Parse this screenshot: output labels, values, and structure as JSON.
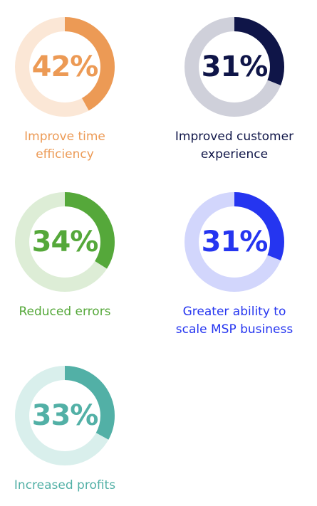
{
  "chart_data": {
    "type": "donut",
    "items": [
      {
        "value": 42,
        "label": "42%",
        "caption": [
          "Improve time",
          "efficiency"
        ],
        "color": "#EC9A55",
        "track": "#FBE7D6"
      },
      {
        "value": 31,
        "label": "31%",
        "caption": [
          "Improved customer",
          "experience"
        ],
        "color": "#0F1548",
        "track": "#CFD0DA"
      },
      {
        "value": 34,
        "label": "34%",
        "caption": [
          "Reduced errors"
        ],
        "color": "#55A83A",
        "track": "#DDEDD6"
      },
      {
        "value": 31,
        "label": "31%",
        "caption": [
          "Greater ability to",
          "scale MSP business"
        ],
        "color": "#2535F0",
        "track": "#D2D6FC"
      },
      {
        "value": 33,
        "label": "33%",
        "caption": [
          "Increased profits"
        ],
        "color": "#52B0A6",
        "track": "#D9EFEC"
      }
    ]
  }
}
